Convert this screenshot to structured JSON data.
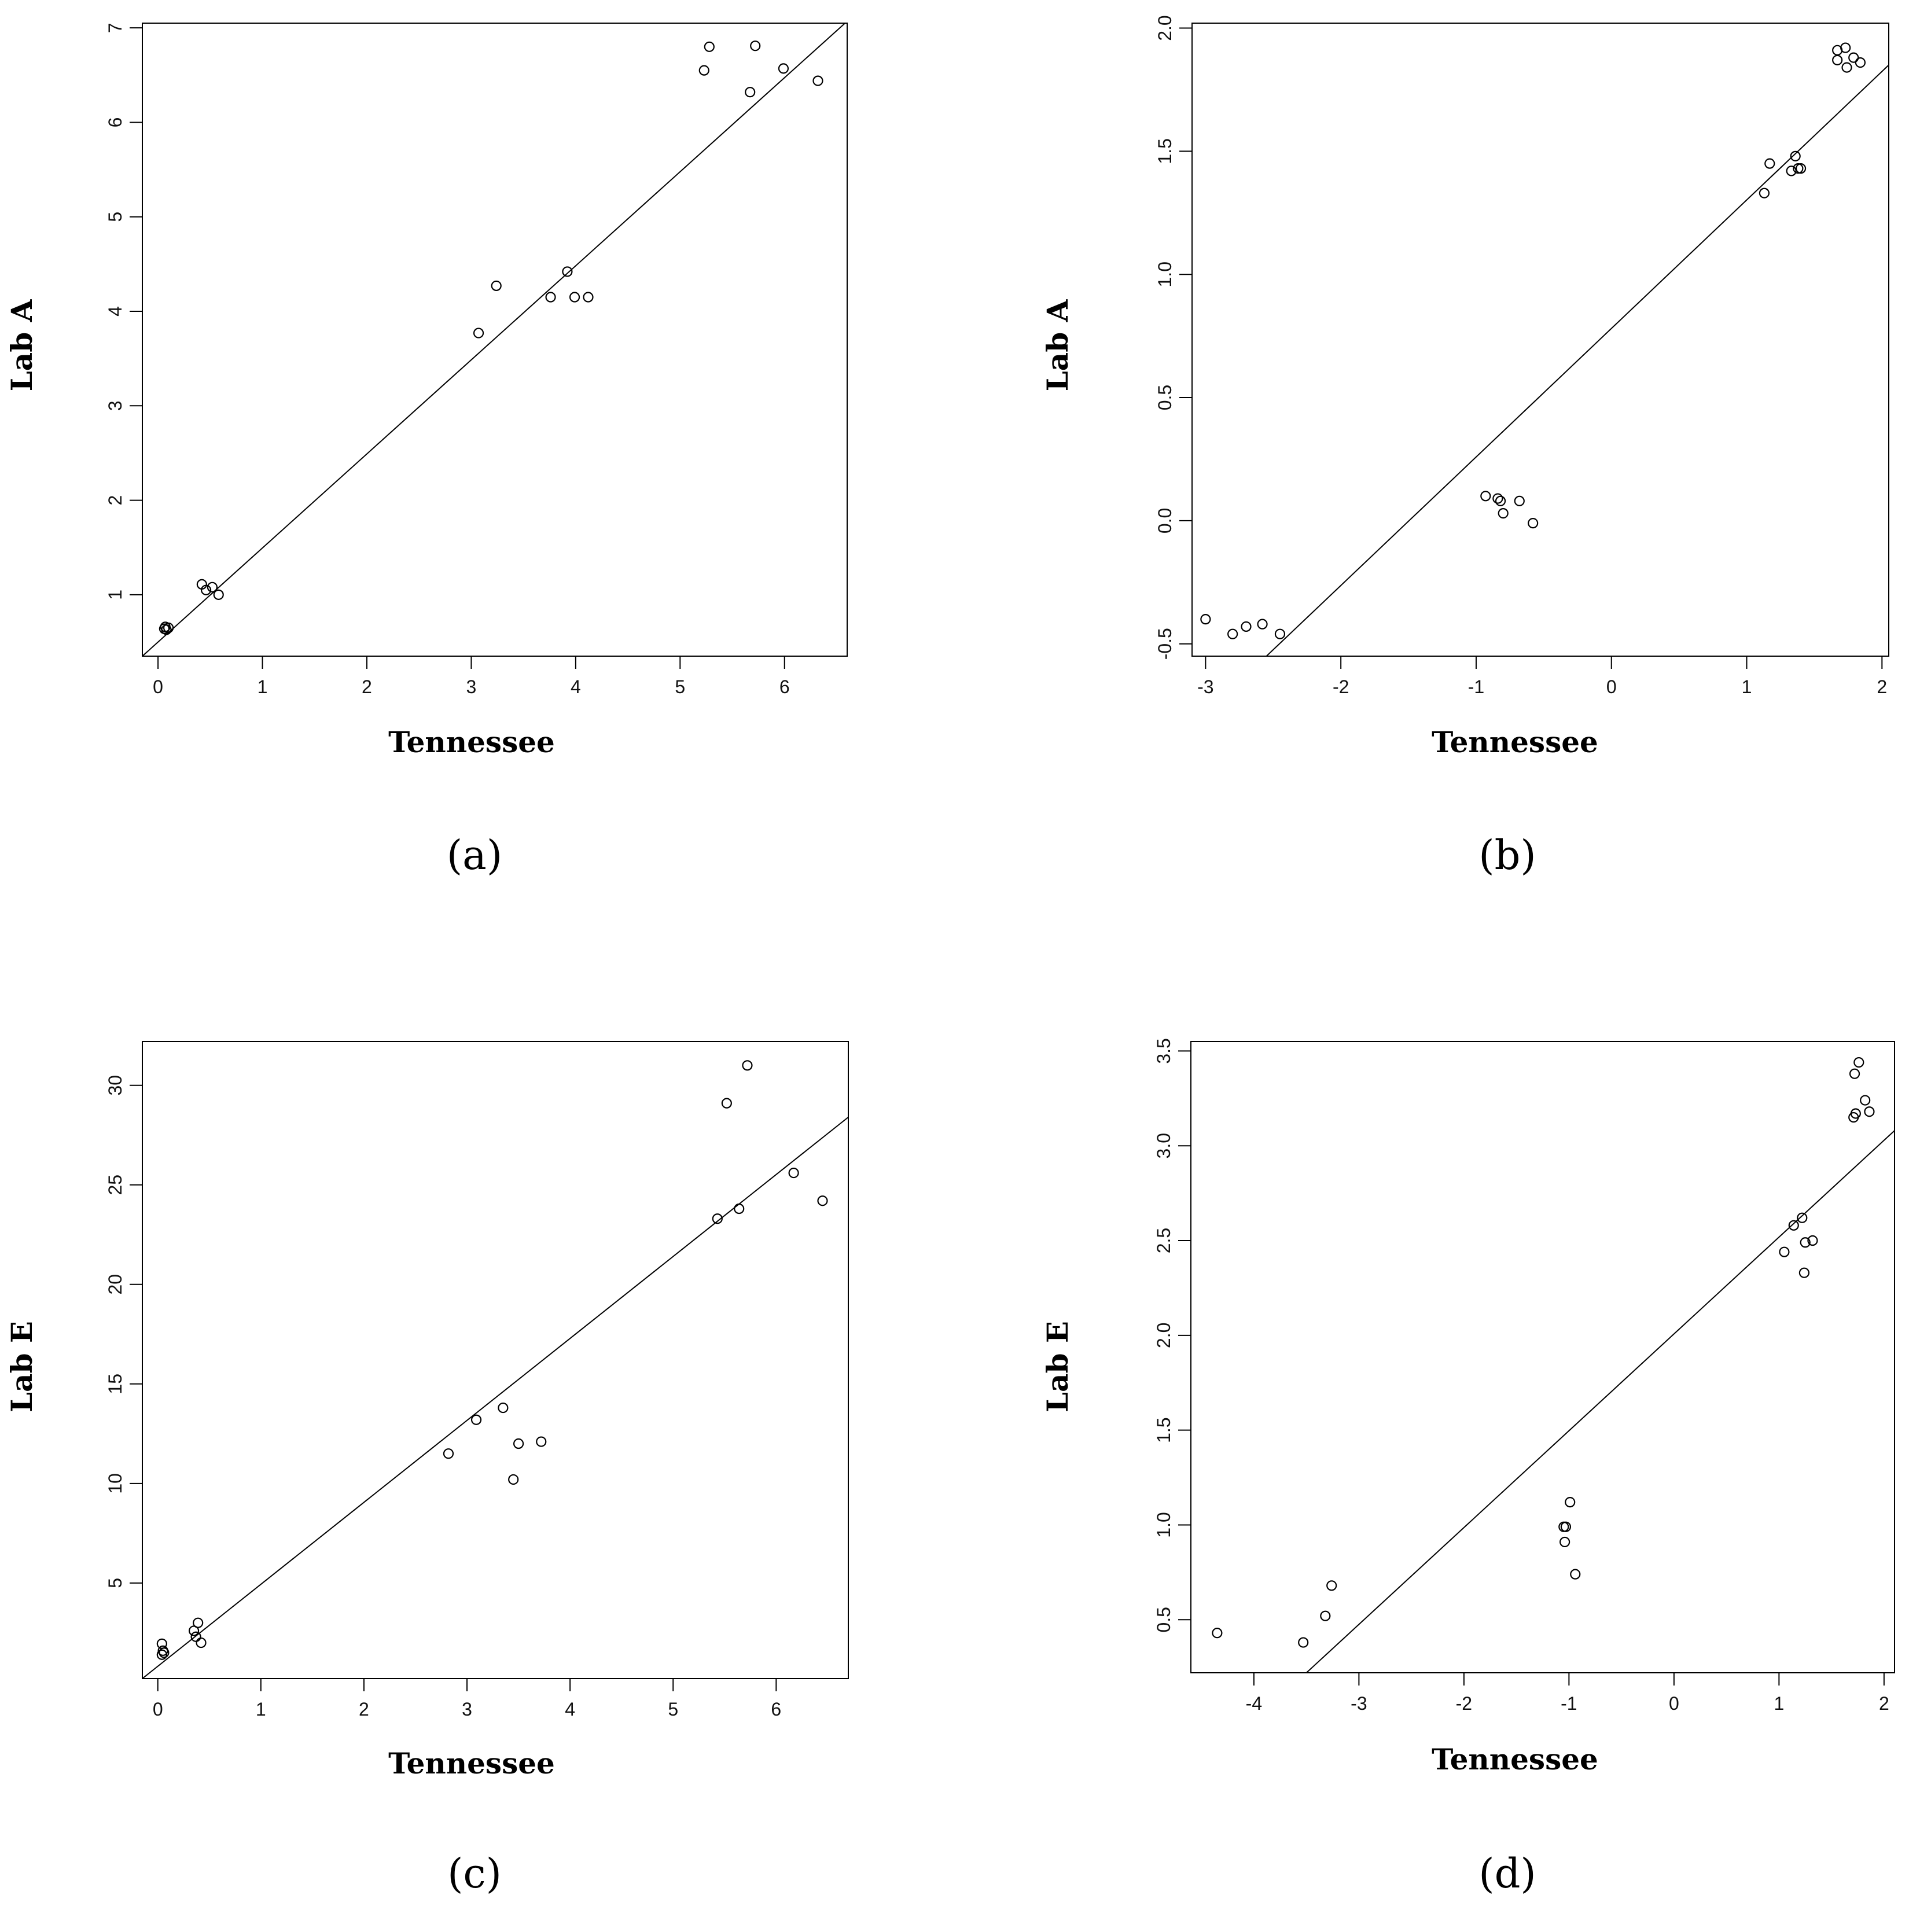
{
  "chart_data": [
    {
      "type": "scatter",
      "panel_label": "(a)",
      "xlabel": "Tennessee",
      "ylabel": "Lab A",
      "xlim": [
        -0.15,
        6.6
      ],
      "ylim": [
        0.35,
        7.05
      ],
      "xticks": [
        0,
        1,
        2,
        3,
        4,
        5,
        6
      ],
      "xtick_labels": [
        "0",
        "1",
        "2",
        "3",
        "4",
        "5",
        "6"
      ],
      "yticks": [
        1,
        2,
        3,
        4,
        5,
        6,
        7
      ],
      "ytick_labels": [
        "1",
        "2",
        "3",
        "4",
        "5",
        "6",
        "7"
      ],
      "grid": false,
      "points": [
        {
          "x": 0.07,
          "y": 0.66
        },
        {
          "x": 0.08,
          "y": 0.63
        },
        {
          "x": 0.1,
          "y": 0.65
        },
        {
          "x": 0.06,
          "y": 0.64
        },
        {
          "x": 0.42,
          "y": 1.11
        },
        {
          "x": 0.46,
          "y": 1.05
        },
        {
          "x": 0.52,
          "y": 1.08
        },
        {
          "x": 0.58,
          "y": 1.0
        },
        {
          "x": 3.07,
          "y": 3.77
        },
        {
          "x": 3.24,
          "y": 4.27
        },
        {
          "x": 3.76,
          "y": 4.15
        },
        {
          "x": 3.92,
          "y": 4.42
        },
        {
          "x": 3.99,
          "y": 4.15
        },
        {
          "x": 4.12,
          "y": 4.15
        },
        {
          "x": 5.23,
          "y": 6.55
        },
        {
          "x": 5.28,
          "y": 6.8
        },
        {
          "x": 5.67,
          "y": 6.32
        },
        {
          "x": 5.72,
          "y": 6.81
        },
        {
          "x": 5.99,
          "y": 6.57
        },
        {
          "x": 6.32,
          "y": 6.44
        }
      ],
      "fit_line": {
        "x": [
          -0.15,
          6.6
        ],
        "y": [
          0.35,
          7.07
        ]
      }
    },
    {
      "type": "scatter",
      "panel_label": "(b)",
      "xlabel": "Tennessee",
      "ylabel": "Lab A",
      "xlim": [
        -3.1,
        2.05
      ],
      "ylim": [
        -0.55,
        2.02
      ],
      "xticks": [
        -3,
        -2,
        -1,
        0,
        1,
        2
      ],
      "xtick_labels": [
        "-3",
        "-2",
        "-1",
        "0",
        "1",
        "2"
      ],
      "yticks": [
        -0.5,
        0,
        0.5,
        1,
        1.5,
        2
      ],
      "ytick_labels": [
        "-0.5",
        "0.0",
        "0.5",
        "1.0",
        "1.5",
        "2.0"
      ],
      "grid": false,
      "points": [
        {
          "x": -3.0,
          "y": -0.4
        },
        {
          "x": -2.8,
          "y": -0.46
        },
        {
          "x": -2.7,
          "y": -0.43
        },
        {
          "x": -2.58,
          "y": -0.42
        },
        {
          "x": -2.45,
          "y": -0.46
        },
        {
          "x": -0.93,
          "y": 0.1
        },
        {
          "x": -0.84,
          "y": 0.09
        },
        {
          "x": -0.82,
          "y": 0.08
        },
        {
          "x": -0.8,
          "y": 0.03
        },
        {
          "x": -0.68,
          "y": 0.08
        },
        {
          "x": -0.58,
          "y": -0.01
        },
        {
          "x": 1.13,
          "y": 1.33
        },
        {
          "x": 1.17,
          "y": 1.45
        },
        {
          "x": 1.33,
          "y": 1.42
        },
        {
          "x": 1.36,
          "y": 1.48
        },
        {
          "x": 1.38,
          "y": 1.43
        },
        {
          "x": 1.4,
          "y": 1.43
        },
        {
          "x": 1.67,
          "y": 1.91
        },
        {
          "x": 1.67,
          "y": 1.87
        },
        {
          "x": 1.73,
          "y": 1.92
        },
        {
          "x": 1.74,
          "y": 1.84
        },
        {
          "x": 1.79,
          "y": 1.88
        },
        {
          "x": 1.84,
          "y": 1.86
        }
      ],
      "fit_line": {
        "x": [
          -2.55,
          2.05
        ],
        "y": [
          -0.55,
          1.85
        ]
      }
    },
    {
      "type": "scatter",
      "panel_label": "(c)",
      "xlabel": "Tennessee",
      "ylabel": "Lab E",
      "xlim": [
        -0.15,
        6.7
      ],
      "ylim": [
        0.2,
        32.2
      ],
      "xticks": [
        0,
        1,
        2,
        3,
        4,
        5,
        6
      ],
      "xtick_labels": [
        "0",
        "1",
        "2",
        "3",
        "4",
        "5",
        "6"
      ],
      "yticks": [
        5,
        10,
        15,
        20,
        25,
        30
      ],
      "ytick_labels": [
        "5",
        "10",
        "15",
        "20",
        "25",
        "30"
      ],
      "grid": false,
      "points": [
        {
          "x": 0.04,
          "y": 1.95
        },
        {
          "x": 0.05,
          "y": 1.6
        },
        {
          "x": 0.04,
          "y": 1.4
        },
        {
          "x": 0.06,
          "y": 1.5
        },
        {
          "x": 0.35,
          "y": 2.6
        },
        {
          "x": 0.37,
          "y": 2.3
        },
        {
          "x": 0.39,
          "y": 3.0
        },
        {
          "x": 0.42,
          "y": 2.0
        },
        {
          "x": 2.82,
          "y": 11.5
        },
        {
          "x": 3.09,
          "y": 13.2
        },
        {
          "x": 3.35,
          "y": 13.8
        },
        {
          "x": 3.45,
          "y": 10.2
        },
        {
          "x": 3.5,
          "y": 12.0
        },
        {
          "x": 3.72,
          "y": 12.1
        },
        {
          "x": 5.43,
          "y": 23.3
        },
        {
          "x": 5.52,
          "y": 29.1
        },
        {
          "x": 5.64,
          "y": 23.8
        },
        {
          "x": 5.72,
          "y": 31.0
        },
        {
          "x": 6.17,
          "y": 25.6
        },
        {
          "x": 6.45,
          "y": 24.2
        }
      ],
      "fit_line": {
        "x": [
          -0.15,
          6.7
        ],
        "y": [
          0.2,
          28.4
        ]
      }
    },
    {
      "type": "scatter",
      "panel_label": "(d)",
      "xlabel": "Tennessee",
      "ylabel": "Lab E",
      "xlim": [
        -4.6,
        2.1
      ],
      "ylim": [
        0.22,
        3.55
      ],
      "xticks": [
        -4,
        -3,
        -2,
        -1,
        0,
        1,
        2
      ],
      "xtick_labels": [
        "-4",
        "-3",
        "-2",
        "-1",
        "0",
        "1",
        "2"
      ],
      "yticks": [
        0.5,
        1,
        1.5,
        2,
        2.5,
        3,
        3.5
      ],
      "ytick_labels": [
        "0.5",
        "1.0",
        "1.5",
        "2.0",
        "2.5",
        "3.0",
        "3.5"
      ],
      "grid": false,
      "points": [
        {
          "x": -4.35,
          "y": 0.43
        },
        {
          "x": -3.53,
          "y": 0.38
        },
        {
          "x": -3.32,
          "y": 0.52
        },
        {
          "x": -3.26,
          "y": 0.68
        },
        {
          "x": -1.05,
          "y": 0.99
        },
        {
          "x": -1.03,
          "y": 0.99
        },
        {
          "x": -1.04,
          "y": 0.91
        },
        {
          "x": -0.99,
          "y": 1.12
        },
        {
          "x": -0.94,
          "y": 0.74
        },
        {
          "x": 1.05,
          "y": 2.44
        },
        {
          "x": 1.14,
          "y": 2.58
        },
        {
          "x": 1.22,
          "y": 2.62
        },
        {
          "x": 1.25,
          "y": 2.49
        },
        {
          "x": 1.24,
          "y": 2.33
        },
        {
          "x": 1.32,
          "y": 2.5
        },
        {
          "x": 1.71,
          "y": 3.15
        },
        {
          "x": 1.73,
          "y": 3.17
        },
        {
          "x": 1.72,
          "y": 3.38
        },
        {
          "x": 1.76,
          "y": 3.44
        },
        {
          "x": 1.82,
          "y": 3.24
        },
        {
          "x": 1.86,
          "y": 3.18
        }
      ],
      "fit_line": {
        "x": [
          -3.5,
          2.1
        ],
        "y": [
          0.22,
          3.08
        ]
      }
    }
  ],
  "colors": {
    "marker": "#000000",
    "axis": "#000000",
    "background": "#ffffff"
  }
}
